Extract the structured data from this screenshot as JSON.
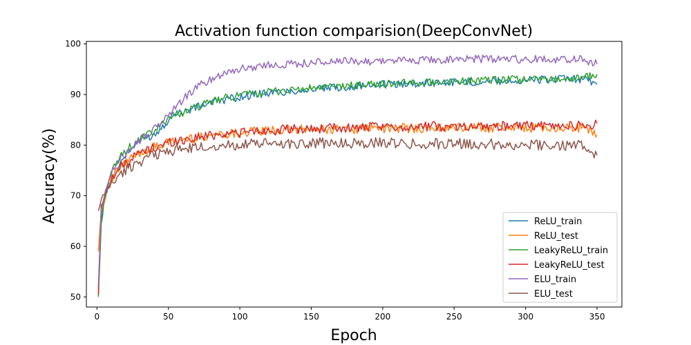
{
  "chart_data": {
    "type": "line",
    "title": "Activation function comparision(DeepConvNet)",
    "xlabel": "Epoch",
    "ylabel": "Accuracy(%)",
    "xlim": [
      -7.4,
      367.4
    ],
    "ylim": [
      48.0,
      100.5
    ],
    "xticks": [
      0,
      50,
      100,
      150,
      200,
      250,
      300,
      350
    ],
    "yticks": [
      50,
      60,
      70,
      80,
      90,
      100
    ],
    "grid": false,
    "legend_position": "lower-right",
    "series": [
      {
        "name": "ReLU_train",
        "color": "#1f77b4",
        "x": [
          1,
          3,
          5,
          8,
          12,
          16,
          20,
          25,
          30,
          35,
          40,
          45,
          50,
          55,
          60,
          70,
          80,
          90,
          100,
          110,
          120,
          130,
          140,
          150,
          160,
          170,
          180,
          190,
          200,
          210,
          220,
          230,
          240,
          250,
          260,
          270,
          280,
          290,
          300,
          310,
          320,
          330,
          340,
          350
        ],
        "y": [
          51.5,
          65,
          69,
          72,
          74.5,
          76.5,
          78,
          79.5,
          81,
          81.5,
          82,
          83.5,
          85,
          86.5,
          86.5,
          87.5,
          88.5,
          89,
          89.5,
          90,
          90.3,
          90.5,
          90.8,
          91,
          91.2,
          91.4,
          91.6,
          91.8,
          92,
          92.1,
          92.2,
          92.3,
          92.4,
          92.5,
          92.5,
          92.6,
          92.7,
          92.8,
          92.8,
          92.9,
          93,
          93,
          93.1,
          92
        ]
      },
      {
        "name": "ReLU_test",
        "color": "#ff7f0e",
        "x": [
          1,
          3,
          5,
          8,
          12,
          16,
          20,
          25,
          30,
          35,
          40,
          45,
          50,
          55,
          60,
          70,
          80,
          90,
          100,
          110,
          120,
          130,
          140,
          150,
          160,
          170,
          180,
          190,
          200,
          210,
          220,
          230,
          240,
          250,
          260,
          270,
          280,
          290,
          300,
          310,
          320,
          330,
          340,
          350
        ],
        "y": [
          59,
          67,
          69,
          72,
          74,
          75.5,
          76.5,
          77.5,
          78.5,
          79,
          79.5,
          80,
          80.5,
          80.8,
          81,
          81.5,
          82,
          82.3,
          82.5,
          82.7,
          82.8,
          83,
          83,
          83.1,
          83.1,
          83.2,
          83.2,
          83.3,
          83.3,
          83.3,
          83.4,
          83.4,
          83.4,
          83.4,
          83.5,
          83.5,
          83.5,
          83.5,
          83.5,
          83.5,
          83.5,
          83.5,
          83.5,
          82
        ]
      },
      {
        "name": "LeakyReLU_train",
        "color": "#2ca02c",
        "x": [
          1,
          3,
          5,
          8,
          12,
          16,
          20,
          25,
          30,
          35,
          40,
          45,
          50,
          55,
          60,
          70,
          80,
          90,
          100,
          110,
          120,
          130,
          140,
          150,
          160,
          170,
          180,
          190,
          200,
          210,
          220,
          230,
          240,
          250,
          260,
          270,
          280,
          290,
          300,
          310,
          320,
          330,
          340,
          350
        ],
        "y": [
          50,
          64,
          69,
          73,
          75.5,
          77.5,
          79,
          80,
          81,
          82,
          82.5,
          84,
          85.5,
          86,
          86.5,
          87.5,
          88.5,
          89.3,
          89.8,
          90.2,
          90.5,
          90.8,
          91,
          91.2,
          91.4,
          91.6,
          91.8,
          92,
          92.1,
          92.2,
          92.3,
          92.4,
          92.5,
          92.6,
          92.7,
          92.8,
          92.8,
          92.9,
          93,
          93,
          93.1,
          93.1,
          93.2,
          94
        ]
      },
      {
        "name": "LeakyReLU_test",
        "color": "#d62728",
        "x": [
          1,
          3,
          5,
          8,
          12,
          16,
          20,
          25,
          30,
          35,
          40,
          45,
          50,
          55,
          60,
          70,
          80,
          90,
          100,
          110,
          120,
          130,
          140,
          150,
          160,
          170,
          180,
          190,
          200,
          210,
          220,
          230,
          240,
          250,
          260,
          270,
          280,
          290,
          300,
          310,
          320,
          330,
          340,
          350
        ],
        "y": [
          50.5,
          68,
          70,
          72,
          74,
          75.5,
          76.5,
          77.5,
          78.5,
          79,
          79.5,
          80,
          80.5,
          80.8,
          81,
          81.5,
          82,
          82.3,
          82.5,
          82.7,
          82.9,
          83,
          83.1,
          83.2,
          83.3,
          83.4,
          83.4,
          83.5,
          83.5,
          83.6,
          83.6,
          83.7,
          83.7,
          83.7,
          83.8,
          83.8,
          83.8,
          83.8,
          83.8,
          83.8,
          83.8,
          83.8,
          83.8,
          84.3
        ]
      },
      {
        "name": "ELU_train",
        "color": "#9467bd",
        "x": [
          1,
          3,
          5,
          8,
          12,
          16,
          20,
          25,
          30,
          35,
          40,
          45,
          50,
          55,
          60,
          70,
          80,
          90,
          100,
          110,
          120,
          130,
          140,
          150,
          160,
          170,
          180,
          190,
          200,
          210,
          220,
          230,
          240,
          250,
          260,
          270,
          280,
          290,
          300,
          310,
          320,
          330,
          340,
          350
        ],
        "y": [
          52,
          67,
          70,
          73,
          75.5,
          77,
          78.5,
          80,
          81,
          82,
          83,
          84.5,
          86,
          87.5,
          89,
          91.5,
          93,
          94.5,
          95,
          95.5,
          95.8,
          96,
          96.1,
          96.3,
          96.4,
          96.5,
          96.6,
          96.6,
          96.7,
          96.7,
          96.8,
          96.8,
          96.9,
          96.9,
          97,
          97,
          97,
          97,
          97,
          97,
          97,
          97,
          97,
          96
        ]
      },
      {
        "name": "ELU_test",
        "color": "#8c564b",
        "x": [
          1,
          3,
          5,
          8,
          12,
          16,
          20,
          25,
          30,
          35,
          40,
          45,
          50,
          55,
          60,
          70,
          80,
          90,
          100,
          110,
          120,
          130,
          140,
          150,
          160,
          170,
          180,
          190,
          200,
          210,
          220,
          230,
          240,
          250,
          260,
          270,
          280,
          290,
          300,
          310,
          320,
          330,
          340,
          350
        ],
        "y": [
          67,
          69,
          70,
          71.5,
          73,
          74,
          75,
          76,
          76.8,
          77.5,
          78,
          78.5,
          78.8,
          79,
          79.2,
          79.5,
          79.8,
          80,
          80.1,
          80.2,
          80.3,
          80.3,
          80.4,
          80.4,
          80.4,
          80.4,
          80.4,
          80.4,
          80.4,
          80.4,
          80.3,
          80.3,
          80.3,
          80.3,
          80.2,
          80.2,
          80.2,
          80.1,
          80.1,
          80.1,
          80,
          80,
          80,
          78
        ]
      }
    ]
  }
}
